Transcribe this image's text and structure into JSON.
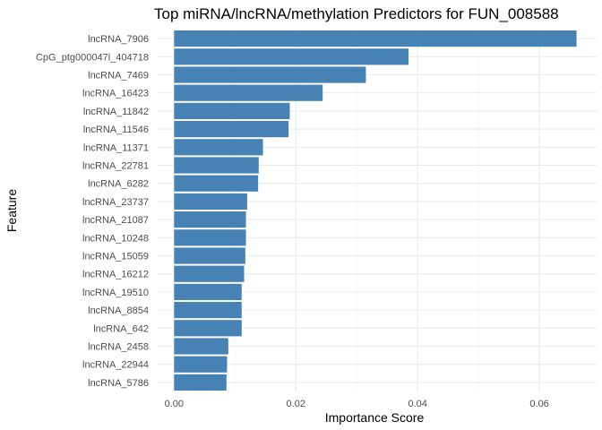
{
  "chart_data": {
    "type": "bar",
    "orientation": "horizontal",
    "title": "Top miRNA/lncRNA/methylation Predictors for FUN_008588",
    "xlabel": "Importance Score",
    "ylabel": "Feature",
    "xlim": [
      -0.0027,
      0.0694
    ],
    "xticks": [
      0.0,
      0.02,
      0.04,
      0.06
    ],
    "xtick_labels": [
      "0.00",
      "0.02",
      "0.04",
      "0.06"
    ],
    "grid": true,
    "bar_color": "#4682B4",
    "categories": [
      "lncRNA_7906",
      "CpG_ptg000047l_404718",
      "lncRNA_7469",
      "lncRNA_16423",
      "lncRNA_11842",
      "lncRNA_11546",
      "lncRNA_11371",
      "lncRNA_22781",
      "lncRNA_6282",
      "lncRNA_23737",
      "lncRNA_21087",
      "lncRNA_10248",
      "lncRNA_15059",
      "lncRNA_16212",
      "lncRNA_19510",
      "lncRNA_8854",
      "lncRNA_642",
      "lncRNA_2458",
      "lncRNA_22944",
      "lncRNA_5786"
    ],
    "values": [
      0.0661,
      0.0385,
      0.0315,
      0.0244,
      0.019,
      0.0188,
      0.0146,
      0.0139,
      0.0138,
      0.012,
      0.0118,
      0.0118,
      0.0117,
      0.0115,
      0.0111,
      0.0111,
      0.0111,
      0.0089,
      0.0087,
      0.0086
    ]
  }
}
